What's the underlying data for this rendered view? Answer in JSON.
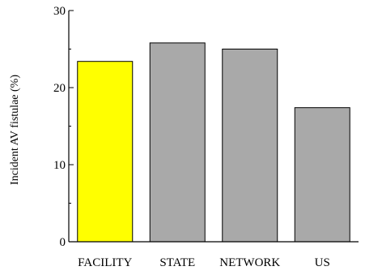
{
  "chart_data": {
    "type": "bar",
    "title": "",
    "xlabel": "",
    "ylabel": "Incident AV fistulae (%)",
    "categories": [
      "FACILITY",
      "STATE",
      "NETWORK",
      "US"
    ],
    "values": [
      23.4,
      25.8,
      25.0,
      17.4
    ],
    "bar_colors": [
      "#ffff00",
      "#a9a9a9",
      "#a9a9a9",
      "#a9a9a9"
    ],
    "ylim": [
      0,
      30
    ],
    "yticks": [
      0,
      10,
      20,
      30
    ],
    "grid": false,
    "legend": "none"
  }
}
